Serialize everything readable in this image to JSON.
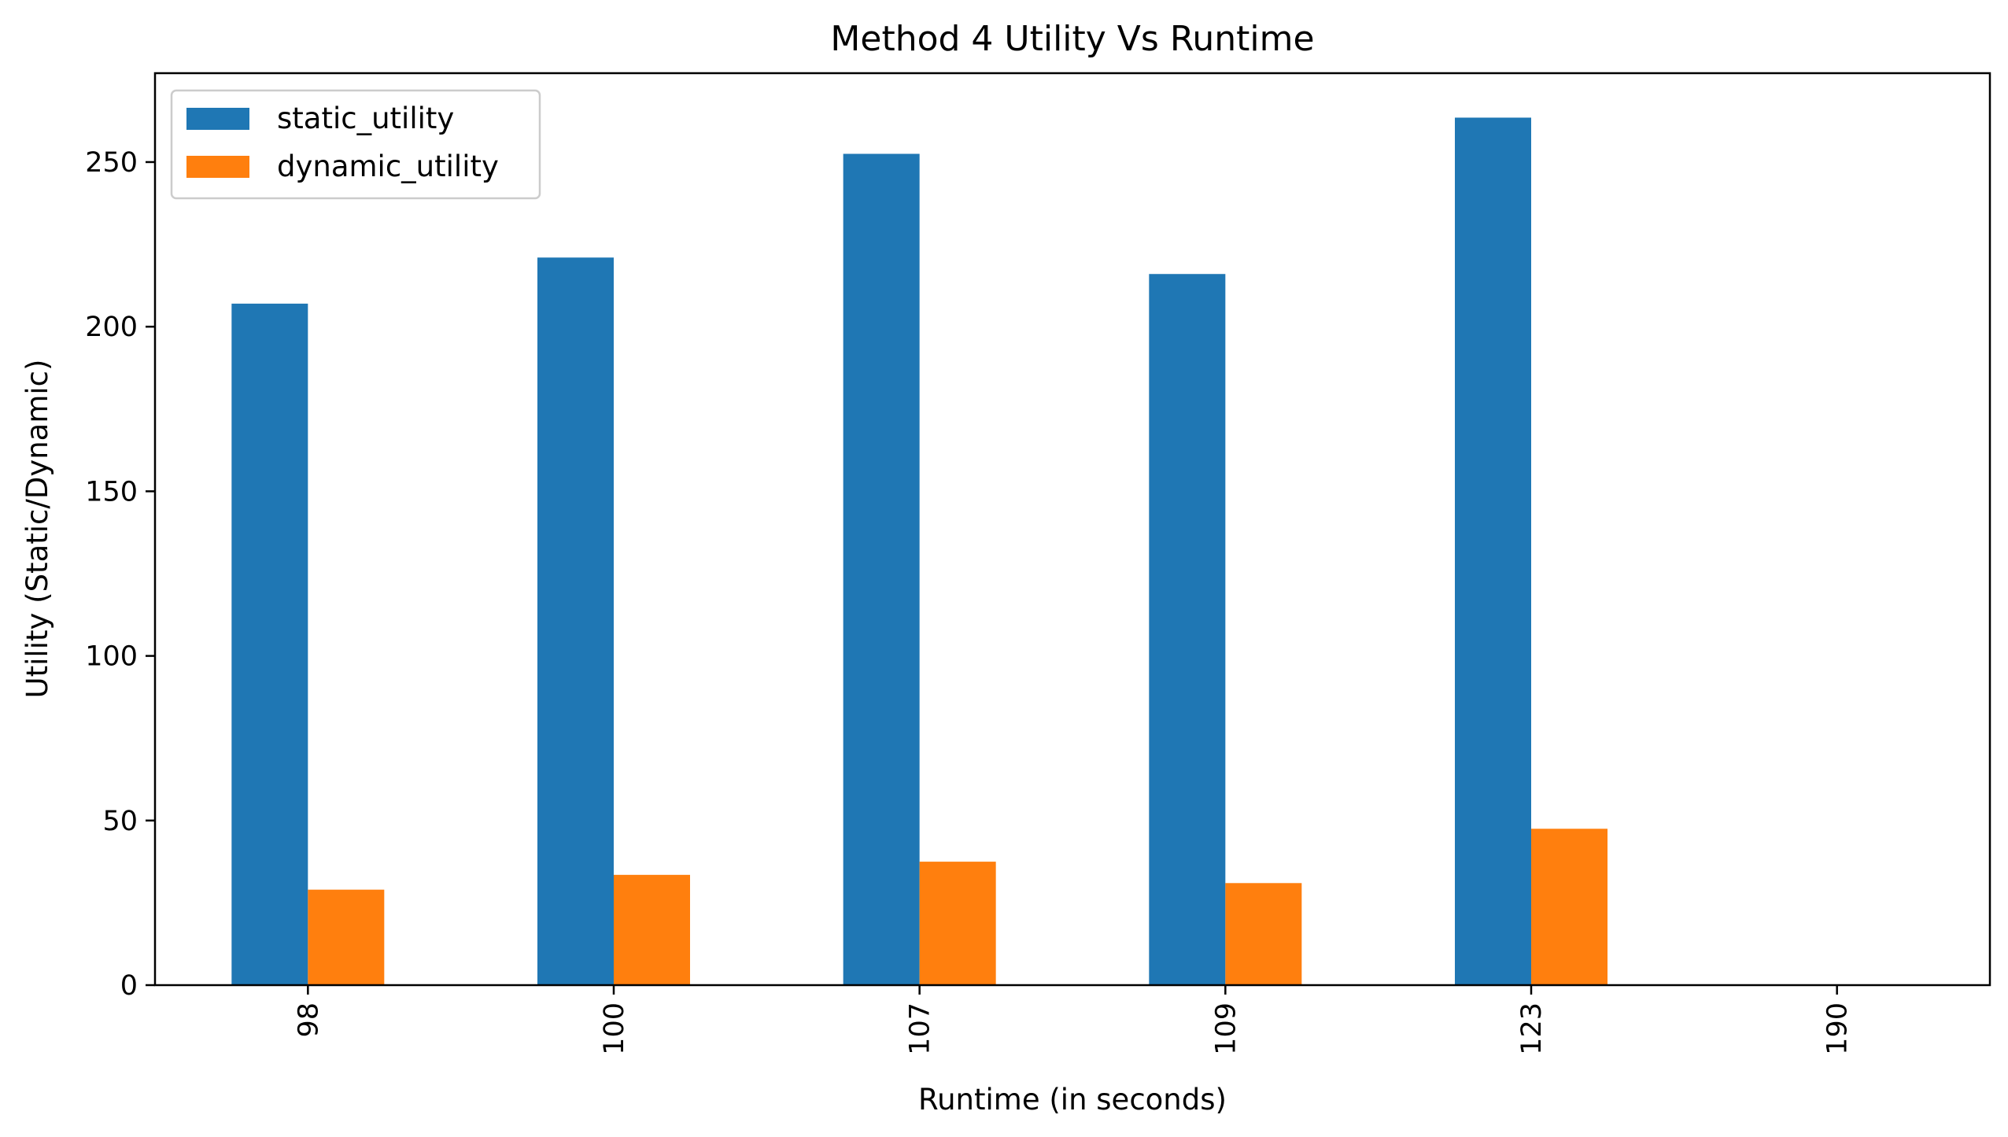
{
  "chart_data": {
    "type": "bar",
    "title": "Method 4 Utility Vs Runtime",
    "xlabel": "Runtime (in seconds)",
    "ylabel": "Utility (Static/Dynamic)",
    "categories": [
      "98",
      "100",
      "107",
      "109",
      "123",
      "190"
    ],
    "series": [
      {
        "name": "static_utility",
        "values": [
          207,
          221,
          252.5,
          216,
          263.5,
          0
        ],
        "color": "#1f77b4"
      },
      {
        "name": "dynamic_utility",
        "values": [
          29,
          33.5,
          37.5,
          31,
          47.5,
          0
        ],
        "color": "#ff7f0e"
      }
    ],
    "ylim": [
      0,
      277
    ],
    "yticks": [
      "0",
      "50",
      "100",
      "150",
      "200",
      "250"
    ],
    "grid": false,
    "legend_position": "top-left"
  }
}
